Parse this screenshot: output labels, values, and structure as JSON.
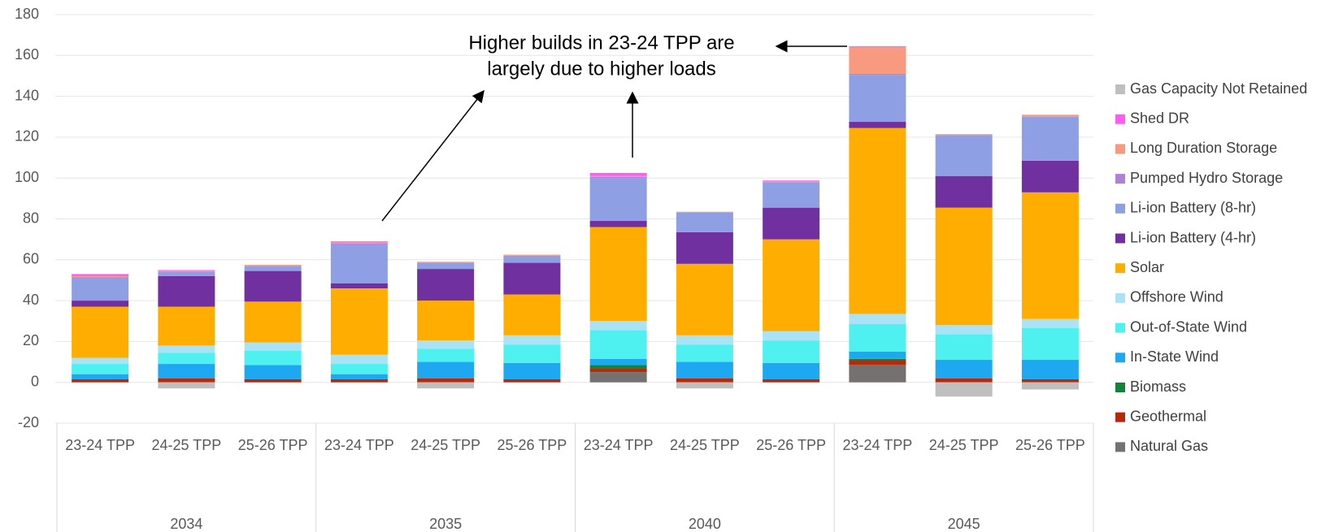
{
  "chart_data": {
    "type": "stacked_bar",
    "categories": [
      "23-24 TPP",
      "24-25 TPP",
      "25-26 TPP",
      "23-24 TPP",
      "24-25 TPP",
      "25-26 TPP",
      "23-24 TPP",
      "24-25 TPP",
      "25-26 TPP",
      "23-24 TPP",
      "24-25 TPP",
      "25-26 TPP"
    ],
    "groups": [
      "2034",
      "2035",
      "2040",
      "2045"
    ],
    "ylim": [
      -20,
      180
    ],
    "yticks": [
      -20,
      0,
      20,
      40,
      60,
      80,
      100,
      120,
      140,
      160,
      180
    ],
    "grid": true,
    "legend": "right",
    "annotation": [
      "Higher builds in 23-24 TPP are",
      "largely due to higher loads"
    ],
    "series": [
      {
        "name": "Natural Gas",
        "color": "#767171",
        "values": [
          0,
          0,
          0,
          0,
          0,
          0,
          5,
          0,
          0,
          8.5,
          0,
          0
        ]
      },
      {
        "name": "Geothermal",
        "color": "#b52a0a",
        "values": [
          1.5,
          2,
          1.5,
          1.5,
          2,
          1.5,
          2,
          2,
          1.5,
          2.5,
          2,
          1.5
        ]
      },
      {
        "name": "Biomass",
        "color": "#12843a",
        "values": [
          0,
          0,
          0,
          0,
          0,
          0,
          1.5,
          0,
          0,
          0.5,
          0,
          0
        ]
      },
      {
        "name": "In-State Wind",
        "color": "#1fa8f2",
        "values": [
          2.5,
          7,
          7,
          2.5,
          8,
          8,
          3,
          8,
          8,
          3.5,
          9,
          9.5
        ]
      },
      {
        "name": "Out-of-State Wind",
        "color": "#4ff0f0",
        "values": [
          5,
          5.5,
          7,
          5,
          6.5,
          9,
          14,
          8.5,
          11,
          13.5,
          12.5,
          15.5
        ]
      },
      {
        "name": "Offshore Wind",
        "color": "#a9e3f5",
        "values": [
          3,
          3.5,
          4,
          4.5,
          4,
          4.5,
          4.5,
          4.5,
          4.5,
          5,
          4.5,
          4.5
        ]
      },
      {
        "name": "Solar",
        "color": "#ffae00",
        "values": [
          25,
          19,
          20,
          32.5,
          19.5,
          20,
          46,
          35,
          45,
          91,
          57.5,
          62
        ]
      },
      {
        "name": "Li-ion Battery (4-hr)",
        "color": "#7030a0",
        "values": [
          3,
          15,
          15,
          2.5,
          15.5,
          15.5,
          3,
          15.5,
          15.5,
          3,
          15.5,
          15.5
        ]
      },
      {
        "name": "Li-ion Battery (8-hr)",
        "color": "#8e9fe3",
        "values": [
          11,
          2,
          2.5,
          19,
          3,
          3.5,
          21,
          9.5,
          12.5,
          23,
          20,
          21.5
        ]
      },
      {
        "name": "Pumped Hydro Storage",
        "color": "#b07fd8",
        "values": [
          0.5,
          0.3,
          0,
          0.5,
          0,
          0,
          0.5,
          0,
          0,
          0.5,
          0,
          0
        ]
      },
      {
        "name": "Long Duration Storage",
        "color": "#f89a80",
        "values": [
          0.5,
          0.5,
          0.5,
          0.5,
          0.5,
          0.5,
          0.5,
          0.5,
          0.5,
          13,
          0.5,
          1
        ]
      },
      {
        "name": "Shed DR",
        "color": "#ff5cf4",
        "values": [
          1,
          0.2,
          0,
          0.5,
          0,
          0,
          1.5,
          0,
          0.3,
          0.5,
          0,
          0
        ]
      },
      {
        "name": "Gas Capacity Not Retained",
        "color": "#bfbfbf",
        "values": [
          0,
          -3,
          0,
          0,
          -3,
          0,
          0,
          -3,
          0,
          0,
          -7,
          -3.5
        ]
      }
    ]
  }
}
